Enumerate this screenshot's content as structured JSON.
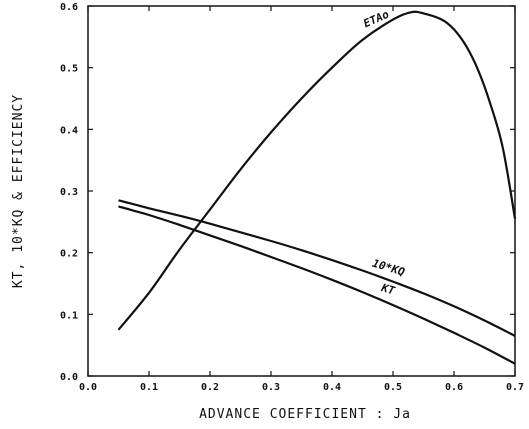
{
  "chart_data": {
    "type": "line",
    "xlabel": "ADVANCE COEFFICIENT : Ja",
    "ylabel": "KT, 10*KQ & EFFICIENCY",
    "xlim": [
      0.0,
      0.7
    ],
    "ylim": [
      0.0,
      0.6
    ],
    "grid": false,
    "x_ticks": [
      0.0,
      0.1,
      0.2,
      0.3,
      0.4,
      0.5,
      0.6,
      0.7
    ],
    "x_tick_labels": [
      "0.0",
      "0.1",
      "0.2",
      "0.3",
      "0.4",
      "0.5",
      "0.6",
      "0.7"
    ],
    "y_ticks": [
      0.0,
      0.1,
      0.2,
      0.3,
      0.4,
      0.5,
      0.6
    ],
    "y_tick_labels": [
      "0.0",
      "0.1",
      "0.2",
      "0.3",
      "0.4",
      "0.5",
      "0.6"
    ],
    "series": [
      {
        "name": "ETAo",
        "x": [
          0.05,
          0.1,
          0.15,
          0.2,
          0.25,
          0.3,
          0.35,
          0.4,
          0.45,
          0.5,
          0.53,
          0.55,
          0.58,
          0.6,
          0.62,
          0.64,
          0.66,
          0.68,
          0.7
        ],
        "y": [
          0.075,
          0.135,
          0.205,
          0.27,
          0.335,
          0.395,
          0.45,
          0.5,
          0.545,
          0.578,
          0.59,
          0.588,
          0.578,
          0.562,
          0.535,
          0.495,
          0.44,
          0.37,
          0.255
        ]
      },
      {
        "name": "10*KQ",
        "x": [
          0.05,
          0.1,
          0.15,
          0.2,
          0.25,
          0.3,
          0.35,
          0.4,
          0.45,
          0.5,
          0.55,
          0.6,
          0.65,
          0.7
        ],
        "y": [
          0.285,
          0.272,
          0.26,
          0.247,
          0.233,
          0.219,
          0.204,
          0.188,
          0.171,
          0.153,
          0.134,
          0.113,
          0.09,
          0.065
        ]
      },
      {
        "name": "KT",
        "x": [
          0.05,
          0.1,
          0.15,
          0.2,
          0.25,
          0.3,
          0.35,
          0.4,
          0.45,
          0.5,
          0.55,
          0.6,
          0.65,
          0.7
        ],
        "y": [
          0.275,
          0.261,
          0.245,
          0.228,
          0.211,
          0.193,
          0.175,
          0.156,
          0.136,
          0.115,
          0.093,
          0.07,
          0.046,
          0.02
        ]
      }
    ]
  }
}
